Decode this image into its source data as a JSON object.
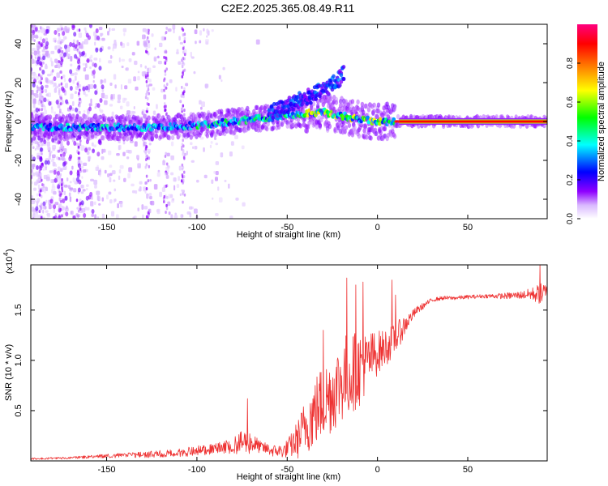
{
  "title": "C2E2.2025.365.08.49.R11",
  "chart_data": [
    {
      "type": "heatmap",
      "title": "C2E2.2025.365.08.49.R11",
      "xlabel": "Height of straight line (km)",
      "ylabel": "Frequency (Hz)",
      "xlim": [
        -192,
        94
      ],
      "ylim": [
        -50,
        50
      ],
      "xticks": [
        -150,
        -100,
        -50,
        0,
        50
      ],
      "yticks": [
        -40,
        -20,
        0,
        20,
        40
      ],
      "colorbar": {
        "label": "Normalized spectral amplitude",
        "range": [
          0.0,
          1.0
        ],
        "ticks": [
          "0.0",
          "0.2",
          "0.4",
          "0.6",
          "0.8"
        ],
        "colormap": "rainbow",
        "colors": [
          "#ffffff",
          "#8f00ff",
          "#0000ff",
          "#00ffff",
          "#00ff00",
          "#ffff00",
          "#ff8000",
          "#ff0000",
          "#ff007f"
        ]
      },
      "description_points": {
        "ridge": [
          [
            -190,
            -3
          ],
          [
            -150,
            -3
          ],
          [
            -120,
            -3
          ],
          [
            -100,
            -2
          ],
          [
            -80,
            0
          ],
          [
            -60,
            2
          ],
          [
            -40,
            4
          ],
          [
            -30,
            5
          ],
          [
            -20,
            3
          ],
          [
            -10,
            1
          ],
          [
            0,
            0
          ],
          [
            10,
            0
          ],
          [
            50,
            0
          ],
          [
            94,
            0
          ]
        ],
        "upper_branch": [
          [
            -60,
            4
          ],
          [
            -50,
            8
          ],
          [
            -40,
            12
          ],
          [
            -30,
            16
          ],
          [
            -22,
            21
          ],
          [
            -18,
            26
          ]
        ]
      }
    },
    {
      "type": "line",
      "xlabel": "Height of straight line (km)",
      "ylabel": "SNR (10 * v/v)",
      "yscale_label": "(x10",
      "yscale_exp": "4",
      "xlim": [
        -192,
        94
      ],
      "ylim": [
        0.0,
        1.95
      ],
      "xticks": [
        -150,
        -100,
        -50,
        0,
        50
      ],
      "yticks": [
        0.5,
        1.0,
        1.5
      ],
      "color": "#ee3333",
      "envelope": {
        "x": [
          -192,
          -170,
          -150,
          -130,
          -110,
          -100,
          -90,
          -80,
          -72,
          -65,
          -58,
          -52,
          -48,
          -44,
          -40,
          -36,
          -32,
          -28,
          -24,
          -20,
          -17,
          -14,
          -10,
          -6,
          -2,
          2,
          6,
          10,
          14,
          18,
          22,
          26,
          30,
          36,
          42,
          50,
          60,
          70,
          80,
          85,
          88,
          92,
          94
        ],
        "mid": [
          0.02,
          0.03,
          0.05,
          0.06,
          0.08,
          0.1,
          0.12,
          0.15,
          0.2,
          0.14,
          0.1,
          0.1,
          0.15,
          0.22,
          0.35,
          0.45,
          0.55,
          0.62,
          0.7,
          0.8,
          0.85,
          0.88,
          0.92,
          0.98,
          1.05,
          1.1,
          1.15,
          1.22,
          1.32,
          1.42,
          1.5,
          1.55,
          1.6,
          1.62,
          1.62,
          1.63,
          1.64,
          1.64,
          1.65,
          1.66,
          1.66,
          1.66,
          1.65
        ],
        "amp": [
          0.01,
          0.01,
          0.02,
          0.03,
          0.04,
          0.05,
          0.05,
          0.08,
          0.14,
          0.06,
          0.06,
          0.07,
          0.12,
          0.2,
          0.28,
          0.35,
          0.38,
          0.4,
          0.4,
          0.42,
          0.45,
          0.4,
          0.38,
          0.3,
          0.25,
          0.2,
          0.18,
          0.15,
          0.12,
          0.06,
          0.04,
          0.03,
          0.02,
          0.02,
          0.02,
          0.02,
          0.02,
          0.03,
          0.04,
          0.06,
          0.09,
          0.12,
          0.12
        ]
      },
      "peaks": [
        [
          -72,
          0.62
        ],
        [
          -30,
          1.3
        ],
        [
          -17,
          1.82
        ],
        [
          -12,
          1.75
        ],
        [
          -8,
          1.78
        ],
        [
          8,
          1.8
        ],
        [
          10,
          1.65
        ],
        [
          90,
          1.95
        ]
      ]
    }
  ]
}
